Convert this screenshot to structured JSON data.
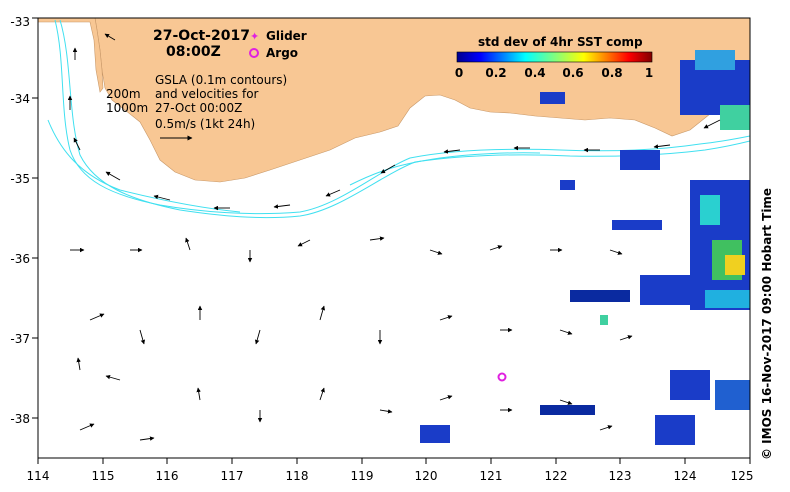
{
  "map": {
    "date": "27-Oct-2017",
    "time": "08:00Z",
    "legend_glider": "Glider",
    "legend_argo": "Argo",
    "contour_200": "200m",
    "contour_1000": "1000m",
    "gsla_line1": "GSLA (0.1m contours)",
    "gsla_line2": "and velocities for",
    "gsla_line3": "27-Oct 00:00Z",
    "scale_label": "0.5m/s (1kt 24h)",
    "colorbar_title": "std dev of 4hr SST comp",
    "colorbar_ticks": [
      "0",
      "0.2",
      "0.4",
      "0.6",
      "0.8",
      "1"
    ],
    "copyright": "© IMOS 16-Nov-2017 09:00 Hobart Time",
    "x_ticks": [
      "114",
      "115",
      "116",
      "117",
      "118",
      "119",
      "120",
      "121",
      "122",
      "123",
      "124",
      "125"
    ],
    "y_ticks": [
      "-33",
      "-34",
      "-35",
      "-36",
      "-37",
      "-38"
    ],
    "colors": {
      "land": "#f8c794",
      "contour": "#40e0f0",
      "argo": "#e020e0",
      "glider": "#e020e0"
    },
    "argo_position": {
      "lon": 121.15,
      "lat": -37.48
    }
  }
}
